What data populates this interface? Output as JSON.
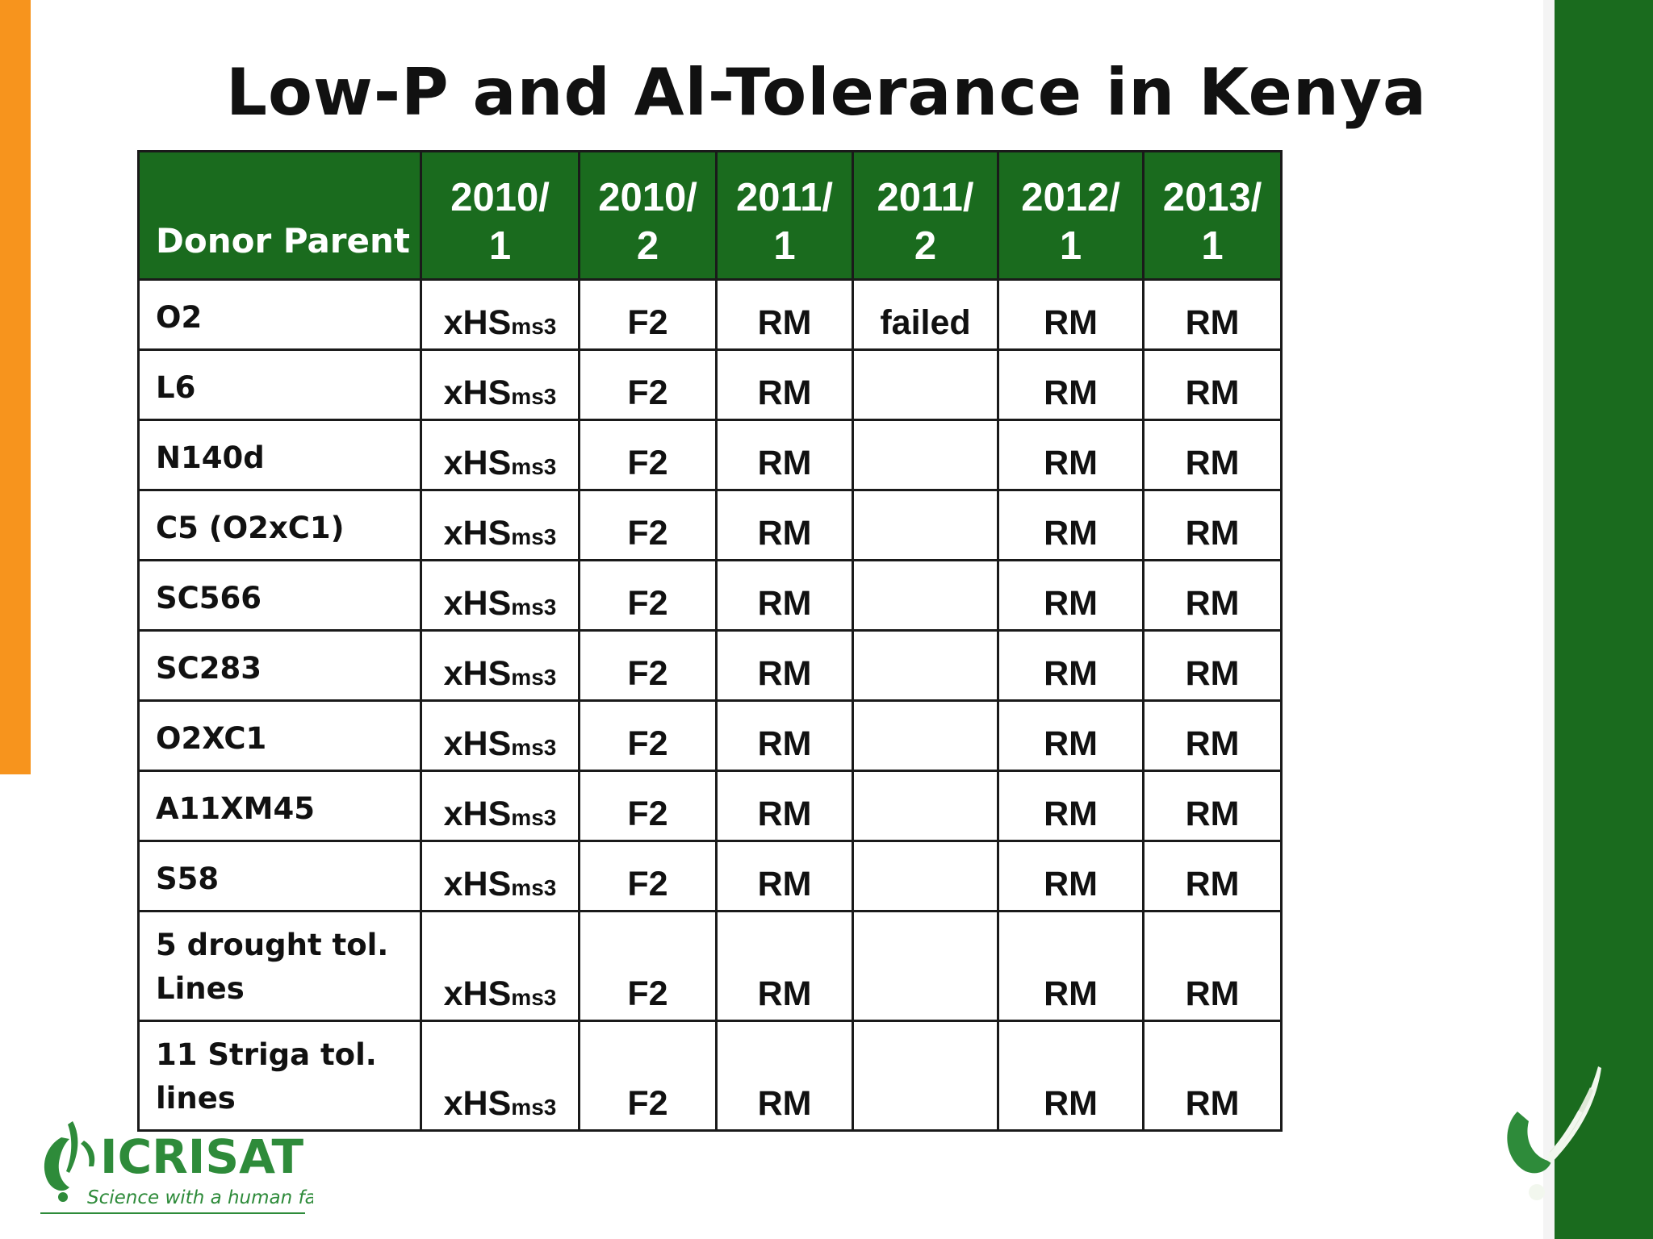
{
  "slide": {
    "title": "Low-P and Al-Tolerance in Kenya"
  },
  "table": {
    "headers": [
      {
        "line1": "",
        "line2": "Donor Parent"
      },
      {
        "line1": "2010/",
        "line2": "1"
      },
      {
        "line1": "2010/",
        "line2": "2"
      },
      {
        "line1": "2011/",
        "line2": "1"
      },
      {
        "line1": "2011/",
        "line2": "2"
      },
      {
        "line1": "2012/",
        "line2": "1"
      },
      {
        "line1": "2013/",
        "line2": "1"
      }
    ],
    "rows": [
      {
        "donor": "O2",
        "donor2": "",
        "c1": "xHS",
        "c1sub": "ms3",
        "c2": "F2",
        "c3": "RM",
        "c4": "failed",
        "c5": "RM",
        "c6": "RM"
      },
      {
        "donor": "L6",
        "donor2": "",
        "c1": "xHS",
        "c1sub": "ms3",
        "c2": "F2",
        "c3": "RM",
        "c4": "",
        "c5": "RM",
        "c6": "RM"
      },
      {
        "donor": "N140d",
        "donor2": "",
        "c1": "xHS",
        "c1sub": "ms3",
        "c2": "F2",
        "c3": "RM",
        "c4": "",
        "c5": "RM",
        "c6": "RM"
      },
      {
        "donor": "C5 (O2xC1)",
        "donor2": "",
        "c1": "xHS",
        "c1sub": "ms3",
        "c2": "F2",
        "c3": "RM",
        "c4": "",
        "c5": "RM",
        "c6": "RM"
      },
      {
        "donor": "SC566",
        "donor2": "",
        "c1": "xHS",
        "c1sub": "ms3",
        "c2": "F2",
        "c3": "RM",
        "c4": "",
        "c5": "RM",
        "c6": "RM"
      },
      {
        "donor": "SC283",
        "donor2": "",
        "c1": "xHS",
        "c1sub": "ms3",
        "c2": "F2",
        "c3": "RM",
        "c4": "",
        "c5": "RM",
        "c6": "RM"
      },
      {
        "donor": "O2XC1",
        "donor2": "",
        "c1": "xHS",
        "c1sub": "ms3",
        "c2": "F2",
        "c3": "RM",
        "c4": "",
        "c5": "RM",
        "c6": "RM"
      },
      {
        "donor": "A11XM45",
        "donor2": "",
        "c1": "xHS",
        "c1sub": "ms3",
        "c2": "F2",
        "c3": "RM",
        "c4": "",
        "c5": "RM",
        "c6": "RM"
      },
      {
        "donor": "S58",
        "donor2": "",
        "c1": "xHS",
        "c1sub": "ms3",
        "c2": "F2",
        "c3": "RM",
        "c4": "",
        "c5": "RM",
        "c6": "RM"
      },
      {
        "donor": "5 drought tol.",
        "donor2": "Lines",
        "c1": "xHS",
        "c1sub": "ms3",
        "c2": "F2",
        "c3": "RM",
        "c4": "",
        "c5": "RM",
        "c6": "RM"
      },
      {
        "donor": "11 Striga tol.",
        "donor2": "lines",
        "c1": "xHS",
        "c1sub": "ms3",
        "c2": "F2",
        "c3": "RM",
        "c4": "",
        "c5": "RM",
        "c6": "RM"
      }
    ]
  },
  "logo": {
    "name": "ICRISAT",
    "tagline": "Science with a human face"
  },
  "colors": {
    "header_green": "#1a6b1e",
    "accent_orange": "#f7941d",
    "logo_green": "#2e8b3a"
  }
}
